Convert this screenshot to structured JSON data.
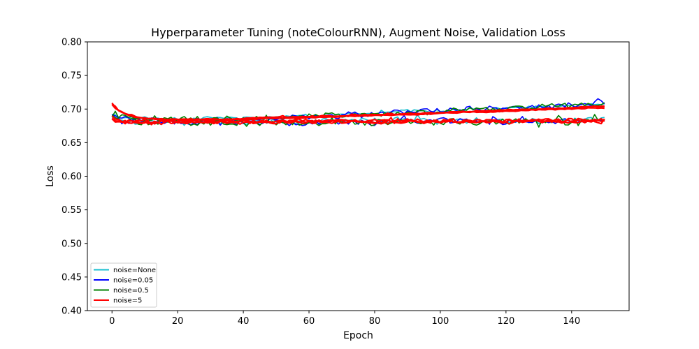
{
  "chart_data": {
    "type": "line",
    "title": "Hyperparameter Tuning (noteColourRNN), Augment Noise, Validation Loss",
    "xlabel": "Epoch",
    "ylabel": "Loss",
    "xlim": [
      -7.5,
      157.5
    ],
    "ylim": [
      0.4,
      0.8
    ],
    "xticks": [
      0,
      20,
      40,
      60,
      80,
      100,
      120,
      140
    ],
    "yticks": [
      0.4,
      0.45,
      0.5,
      0.55,
      0.6,
      0.65,
      0.7,
      0.75,
      0.8
    ],
    "grid": false,
    "legend_position": "lower-left",
    "epochs": 150,
    "series": [
      {
        "name": "noise=None",
        "color": "#17becf",
        "runs": [
          {
            "shape": "rising",
            "start": 0.693,
            "dip": 0.686,
            "end": 0.707,
            "amp": 0.002,
            "noise": 0.0012,
            "seed": 11
          },
          {
            "shape": "flat",
            "start": 0.692,
            "dip": 0.681,
            "end": 0.683,
            "amp": 0.004,
            "noise": 0.0015,
            "seed": 12
          }
        ]
      },
      {
        "name": "noise=0.05",
        "color": "#0000ff",
        "runs": [
          {
            "shape": "rising",
            "start": 0.694,
            "dip": 0.684,
            "end": 0.709,
            "amp": 0.0035,
            "noise": 0.0015,
            "seed": 21
          },
          {
            "shape": "flat",
            "start": 0.69,
            "dip": 0.68,
            "end": 0.682,
            "amp": 0.004,
            "noise": 0.0015,
            "seed": 22
          }
        ]
      },
      {
        "name": "noise=0.5",
        "color": "#008000",
        "runs": [
          {
            "shape": "rising",
            "start": 0.692,
            "dip": 0.685,
            "end": 0.707,
            "amp": 0.0035,
            "noise": 0.0015,
            "seed": 31
          },
          {
            "shape": "flat",
            "start": 0.689,
            "dip": 0.68,
            "end": 0.681,
            "amp": 0.005,
            "noise": 0.0015,
            "seed": 32
          }
        ]
      },
      {
        "name": "noise=5",
        "color": "#ff0000",
        "runs": [
          {
            "shape": "smooth",
            "start": 0.709,
            "dip": 0.684,
            "end": 0.703,
            "amp": 0.0012,
            "noise": 0.0006,
            "seed": 41
          },
          {
            "shape": "smooth",
            "start": 0.707,
            "dip": 0.684,
            "end": 0.702,
            "amp": 0.0012,
            "noise": 0.0006,
            "seed": 42
          },
          {
            "shape": "smooth",
            "start": 0.708,
            "dip": 0.685,
            "end": 0.704,
            "amp": 0.0012,
            "noise": 0.0006,
            "seed": 43
          },
          {
            "shape": "flat",
            "start": 0.688,
            "dip": 0.681,
            "end": 0.682,
            "amp": 0.0025,
            "noise": 0.001,
            "seed": 44
          },
          {
            "shape": "flat",
            "start": 0.686,
            "dip": 0.681,
            "end": 0.683,
            "amp": 0.0025,
            "noise": 0.001,
            "seed": 45
          },
          {
            "shape": "flat",
            "start": 0.687,
            "dip": 0.68,
            "end": 0.681,
            "amp": 0.0025,
            "noise": 0.001,
            "seed": 46
          }
        ]
      }
    ]
  }
}
